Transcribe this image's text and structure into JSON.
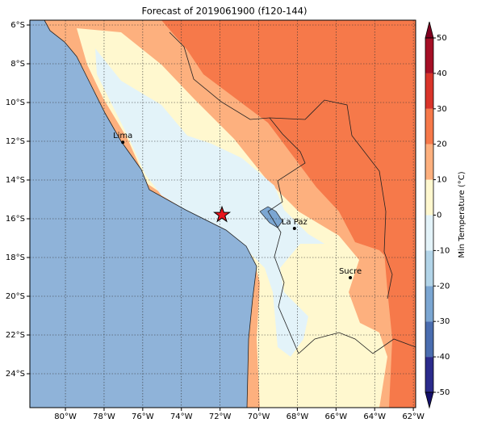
{
  "title": "Forecast of 2019061900 (f120-144)",
  "map": {
    "lonlim": [
      -81.84,
      -61.88
    ],
    "latlim": [
      -25.75,
      -5.75
    ],
    "xticks": [
      {
        "value": -80,
        "label": "80°W"
      },
      {
        "value": -78,
        "label": "78°W"
      },
      {
        "value": -76,
        "label": "76°W"
      },
      {
        "value": -74,
        "label": "74°W"
      },
      {
        "value": -72,
        "label": "72°W"
      },
      {
        "value": -70,
        "label": "70°W"
      },
      {
        "value": -68,
        "label": "68°W"
      },
      {
        "value": -66,
        "label": "66°W"
      },
      {
        "value": -64,
        "label": "64°W"
      },
      {
        "value": -62,
        "label": "62°W"
      }
    ],
    "yticks": [
      {
        "value": -6,
        "label": "6°S"
      },
      {
        "value": -8,
        "label": "8°S"
      },
      {
        "value": -10,
        "label": "10°S"
      },
      {
        "value": -12,
        "label": "12°S"
      },
      {
        "value": -14,
        "label": "14°S"
      },
      {
        "value": -16,
        "label": "16°S"
      },
      {
        "value": -18,
        "label": "18°S"
      },
      {
        "value": -20,
        "label": "20°S"
      },
      {
        "value": -22,
        "label": "22°S"
      },
      {
        "value": -24,
        "label": "24°S"
      }
    ],
    "cities": [
      {
        "name": "Lima",
        "lon": -77.03,
        "lat": -12.05
      },
      {
        "name": "La Paz",
        "lon": -68.15,
        "lat": -16.5
      },
      {
        "name": "Sucre",
        "lon": -65.26,
        "lat": -19.04
      }
    ],
    "marker": {
      "lon": -71.9,
      "lat": -15.8,
      "color": "#e8141c"
    }
  },
  "colorbar": {
    "label": "Min Temperature (°C)",
    "levels": [
      -50,
      -40,
      -30,
      -20,
      -10,
      0,
      10,
      20,
      30,
      40,
      50
    ],
    "colors": [
      "#2b2b8c",
      "#4a6db0",
      "#7ba6d2",
      "#b2d4e8",
      "#e3f3f9",
      "#fff8cf",
      "#fdb07e",
      "#f6794a",
      "#d9342a",
      "#a50f26"
    ],
    "extend_colors": [
      "#14106a",
      "#800020"
    ]
  }
}
